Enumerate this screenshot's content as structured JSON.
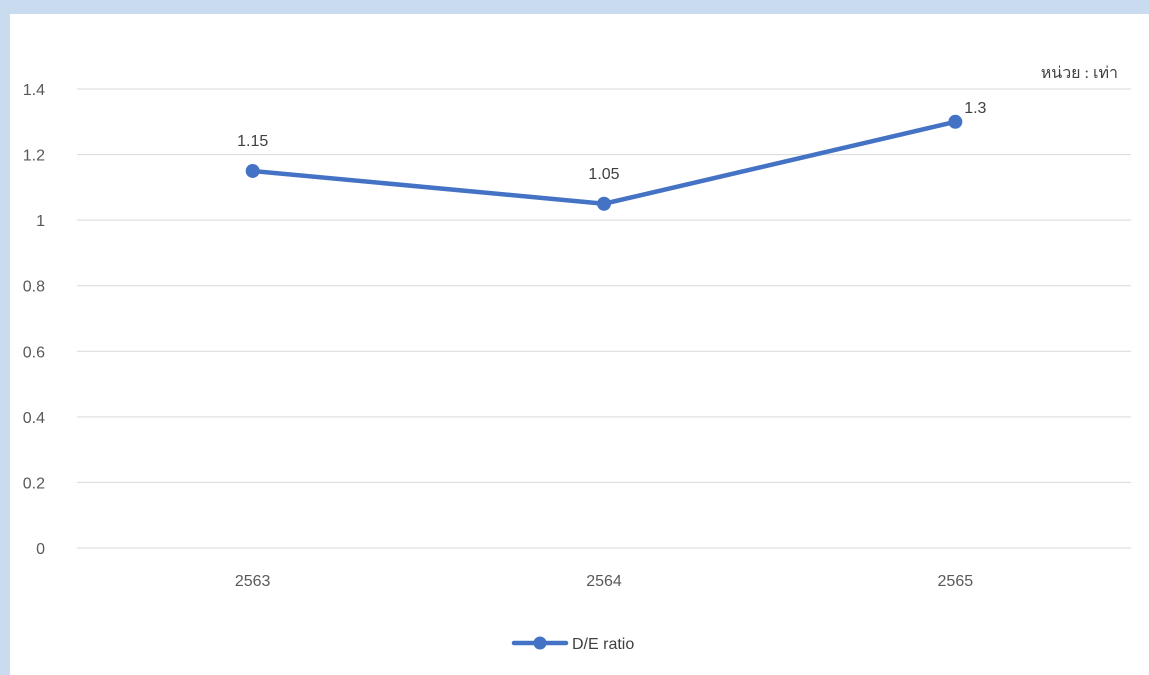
{
  "chart_data": {
    "type": "line",
    "title": "",
    "xlabel": "",
    "ylabel": "",
    "unit_label": "หน่วย : เท่า",
    "categories": [
      "2563",
      "2564",
      "2565"
    ],
    "series": [
      {
        "name": "D/E ratio",
        "values": [
          1.15,
          1.05,
          1.3
        ],
        "color": "#4472c4",
        "data_labels": [
          "1.15",
          "1.05",
          "1.3"
        ]
      }
    ],
    "ylim": [
      0,
      1.4
    ],
    "yticks": [
      "0",
      "0.2",
      "0.4",
      "0.6",
      "0.8",
      "1",
      "1.2",
      "1.4"
    ],
    "grid": true,
    "legend_position": "bottom"
  }
}
